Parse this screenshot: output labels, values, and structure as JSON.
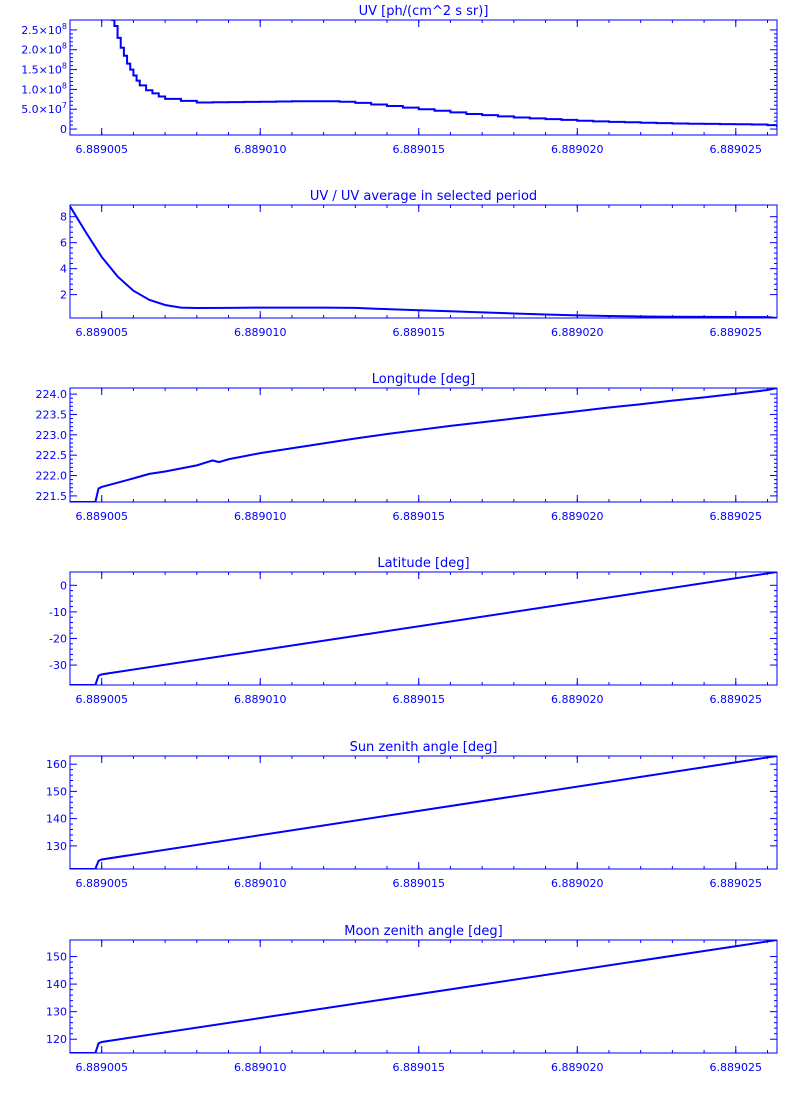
{
  "style": {
    "color": "#0000ff",
    "background": "#ffffff"
  },
  "xaxis": {
    "range": [
      6.889004,
      6.8890263
    ],
    "ticks": [
      6.889005,
      6.88901,
      6.889015,
      6.88902,
      6.889025
    ],
    "tick_labels": [
      "6.889005",
      "6.889010",
      "6.889015",
      "6.889020",
      "6.889025"
    ]
  },
  "chart_data": [
    {
      "type": "line",
      "step": true,
      "title": "UV [ph/(cm^2 s sr)]",
      "ylim": [
        -15000000.0,
        275000000.0
      ],
      "y_ticks": [
        0,
        50000000.0,
        100000000.0,
        150000000.0,
        200000000.0,
        250000000.0
      ],
      "y_tick_labels": [
        {
          "m": "0",
          "e": ""
        },
        {
          "m": "5.0×10",
          "e": "7"
        },
        {
          "m": "1.0×10",
          "e": "8"
        },
        {
          "m": "1.5×10",
          "e": "8"
        },
        {
          "m": "2.0×10",
          "e": "8"
        },
        {
          "m": "2.5×10",
          "e": "8"
        }
      ],
      "x": [
        6.8890053,
        6.8890054,
        6.8890055,
        6.8890056,
        6.8890057,
        6.8890058,
        6.8890059,
        6.889006,
        6.8890061,
        6.8890062,
        6.8890064,
        6.8890066,
        6.8890068,
        6.889007,
        6.8890075,
        6.889008,
        6.8890085,
        6.889009,
        6.8890095,
        6.88901,
        6.8890105,
        6.889011,
        6.8890115,
        6.889012,
        6.8890125,
        6.889013,
        6.8890135,
        6.889014,
        6.8890145,
        6.889015,
        6.8890155,
        6.889016,
        6.8890165,
        6.889017,
        6.8890175,
        6.889018,
        6.8890185,
        6.889019,
        6.8890195,
        6.88902,
        6.8890205,
        6.889021,
        6.8890215,
        6.889022,
        6.8890225,
        6.889023,
        6.8890235,
        6.889024,
        6.8890245,
        6.889025,
        6.8890255,
        6.889026,
        6.8890263
      ],
      "values": [
        275000000.0,
        260000000.0,
        230000000.0,
        205000000.0,
        185000000.0,
        165000000.0,
        150000000.0,
        135000000.0,
        122000000.0,
        110000000.0,
        98000000.0,
        90000000.0,
        82000000.0,
        76000000.0,
        71000000.0,
        67000000.0,
        67500000.0,
        68000000.0,
        68500000.0,
        69000000.0,
        69500000.0,
        70000000.0,
        70000000.0,
        70000000.0,
        69000000.0,
        66000000.0,
        62000000.0,
        58000000.0,
        54000000.0,
        50000000.0,
        46000000.0,
        42000000.0,
        38000000.0,
        35000000.0,
        32000000.0,
        29000000.0,
        27000000.0,
        25000000.0,
        23000000.0,
        21000000.0,
        19500000.0,
        18000000.0,
        17000000.0,
        16000000.0,
        15000000.0,
        14000000.0,
        13500000.0,
        13000000.0,
        12500000.0,
        12000000.0,
        11500000.0,
        10000000.0,
        5000000.0
      ]
    },
    {
      "type": "line",
      "title": "UV / UV average in selected period",
      "ylim": [
        0.2,
        8.9
      ],
      "y_ticks": [
        2,
        4,
        6,
        8
      ],
      "y_tick_labels": [
        "2",
        "4",
        "6",
        "8"
      ],
      "x": [
        6.889004,
        6.8890045,
        6.889005,
        6.8890055,
        6.889006,
        6.8890065,
        6.889007,
        6.8890075,
        6.889008,
        6.889009,
        6.88901,
        6.889011,
        6.889012,
        6.889013,
        6.889014,
        6.889015,
        6.889016,
        6.889017,
        6.889018,
        6.889019,
        6.88902,
        6.889021,
        6.889022,
        6.889023,
        6.889024,
        6.889025,
        6.889026,
        6.8890263
      ],
      "values": [
        8.8,
        6.8,
        4.9,
        3.4,
        2.3,
        1.6,
        1.2,
        1.0,
        0.97,
        0.98,
        1.0,
        1.0,
        1.0,
        0.98,
        0.88,
        0.8,
        0.72,
        0.63,
        0.55,
        0.47,
        0.4,
        0.35,
        0.32,
        0.3,
        0.29,
        0.28,
        0.27,
        0.2
      ]
    },
    {
      "type": "line",
      "title": "Longitude [deg]",
      "ylim": [
        221.35,
        224.15
      ],
      "y_ticks": [
        221.5,
        222.0,
        222.5,
        223.0,
        223.5,
        224.0
      ],
      "y_tick_labels": [
        "221.5",
        "222.0",
        "222.5",
        "223.0",
        "223.5",
        "224.0"
      ],
      "x": [
        6.889004,
        6.8890048,
        6.8890049,
        6.889005,
        6.889006,
        6.8890065,
        6.889007,
        6.889008,
        6.8890085,
        6.8890087,
        6.889009,
        6.88901,
        6.889011,
        6.889012,
        6.889013,
        6.889014,
        6.889015,
        6.889016,
        6.889017,
        6.889018,
        6.889019,
        6.88902,
        6.889021,
        6.889022,
        6.889023,
        6.889024,
        6.889025,
        6.889026,
        6.8890263
      ],
      "values": [
        221.35,
        221.35,
        221.68,
        221.72,
        221.93,
        222.04,
        222.1,
        222.25,
        222.37,
        222.33,
        222.4,
        222.55,
        222.67,
        222.79,
        222.91,
        223.02,
        223.12,
        223.22,
        223.31,
        223.4,
        223.49,
        223.58,
        223.67,
        223.75,
        223.84,
        223.92,
        224.01,
        224.1,
        224.15
      ]
    },
    {
      "type": "line",
      "title": "Latitude [deg]",
      "ylim": [
        -37.5,
        5.0
      ],
      "y_ticks": [
        -30,
        -20,
        -10,
        0
      ],
      "y_tick_labels": [
        "-30",
        "-20",
        "-10",
        "0"
      ],
      "x": [
        6.889004,
        6.8890048,
        6.8890049,
        6.889005,
        6.8890263
      ],
      "values": [
        -37.5,
        -37.5,
        -34.0,
        -33.5,
        5.0
      ]
    },
    {
      "type": "line",
      "title": "Sun zenith angle [deg]",
      "ylim": [
        121.5,
        163.0
      ],
      "y_ticks": [
        130,
        140,
        150,
        160
      ],
      "y_tick_labels": [
        "130",
        "140",
        "150",
        "160"
      ],
      "x": [
        6.889004,
        6.8890048,
        6.8890049,
        6.889005,
        6.8890263
      ],
      "values": [
        121.5,
        121.5,
        124.5,
        125.0,
        163.0
      ]
    },
    {
      "type": "line",
      "title": "Moon zenith angle [deg]",
      "ylim": [
        115.0,
        156.0
      ],
      "y_ticks": [
        120,
        130,
        140,
        150
      ],
      "y_tick_labels": [
        "120",
        "130",
        "140",
        "150"
      ],
      "x": [
        6.889004,
        6.8890048,
        6.8890049,
        6.889005,
        6.8890263
      ],
      "values": [
        115.0,
        115.0,
        118.5,
        119.0,
        156.0
      ]
    }
  ]
}
